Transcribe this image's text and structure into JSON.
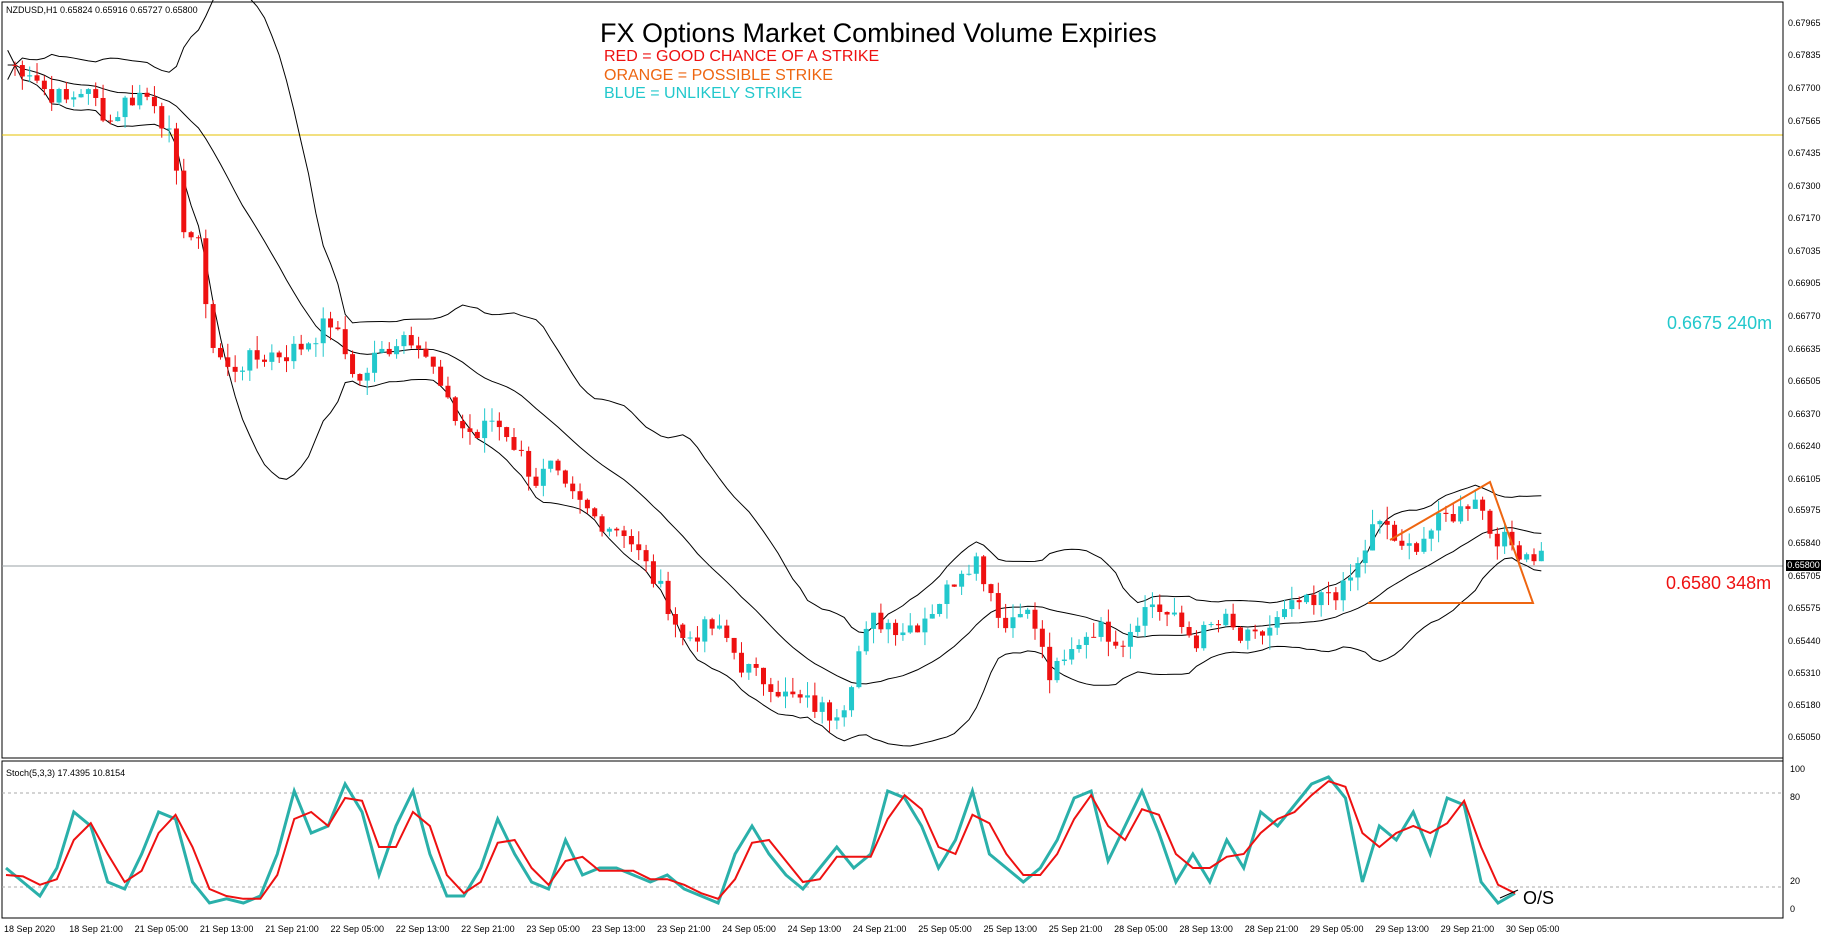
{
  "header": {
    "symbol_info": "NZDUSD,H1  0.65824 0.65916 0.65727 0.65800",
    "title": "FX Options Market Combined Volume Expiries",
    "legend": [
      {
        "text": "RED = GOOD CHANCE OF A STRIKE",
        "color": "#ee1111"
      },
      {
        "text": "ORANGE = POSSIBLE STRIKE",
        "color": "#ee6611"
      },
      {
        "text": "BLUE = UNLIKELY STRIKE",
        "color": "#22c8cc"
      }
    ]
  },
  "annotations": {
    "level_blue": "0.6675 240m",
    "level_red": "0.6580 348m",
    "current_price": "0.65800",
    "stoch_label": "Stoch(5,3,3) 17.4395 10.8154",
    "os_label": "O/S"
  },
  "colors": {
    "bull": "#22c8cc",
    "bear": "#ee1111",
    "band": "#000000",
    "hline_gold": "#e6c200",
    "hline_current": "#9aa0a6",
    "triangle": "#ee6611",
    "stoch_main": "#2ab0aa",
    "stoch_signal": "#ee1111"
  },
  "chart_data": [
    {
      "type": "candlestick",
      "name": "NZDUSD H1",
      "ylim": [
        0.65,
        0.6804
      ],
      "y_ticks": [
        "0.67965",
        "0.67835",
        "0.67700",
        "0.67565",
        "0.67435",
        "0.67300",
        "0.67170",
        "0.67035",
        "0.66905",
        "0.66770",
        "0.66635",
        "0.66505",
        "0.66370",
        "0.66240",
        "0.66105",
        "0.65975",
        "0.65840",
        "0.65705",
        "0.65575",
        "0.65440",
        "0.65310",
        "0.65180",
        "0.65050"
      ],
      "x_ticks": [
        "18 Sep 2020",
        "18 Sep 21:00",
        "21 Sep 05:00",
        "21 Sep 13:00",
        "21 Sep 21:00",
        "22 Sep 05:00",
        "22 Sep 13:00",
        "22 Sep 21:00",
        "23 Sep 05:00",
        "23 Sep 13:00",
        "23 Sep 21:00",
        "24 Sep 05:00",
        "24 Sep 13:00",
        "24 Sep 21:00",
        "25 Sep 05:00",
        "25 Sep 13:00",
        "25 Sep 21:00",
        "28 Sep 05:00",
        "28 Sep 13:00",
        "28 Sep 21:00",
        "29 Sep 05:00",
        "29 Sep 13:00",
        "29 Sep 21:00",
        "30 Sep 05:00"
      ],
      "close_path": [
        [
          0,
          0.678
        ],
        [
          3,
          0.6778
        ],
        [
          5,
          0.677
        ],
        [
          8,
          0.6765
        ],
        [
          10,
          0.677
        ],
        [
          12,
          0.6765
        ],
        [
          14,
          0.6757
        ],
        [
          16,
          0.6765
        ],
        [
          18,
          0.6768
        ],
        [
          20,
          0.6766
        ],
        [
          22,
          0.675
        ],
        [
          24,
          0.6715
        ],
        [
          26,
          0.6705
        ],
        [
          28,
          0.6665
        ],
        [
          30,
          0.6655
        ],
        [
          32,
          0.6658
        ],
        [
          34,
          0.666
        ],
        [
          36,
          0.6662
        ],
        [
          38,
          0.6662
        ],
        [
          40,
          0.6665
        ],
        [
          42,
          0.667
        ],
        [
          44,
          0.6675
        ],
        [
          46,
          0.6662
        ],
        [
          48,
          0.665
        ],
        [
          50,
          0.666
        ],
        [
          52,
          0.6665
        ],
        [
          54,
          0.667
        ],
        [
          56,
          0.6668
        ],
        [
          58,
          0.6655
        ],
        [
          60,
          0.664
        ],
        [
          62,
          0.6632
        ],
        [
          64,
          0.6628
        ],
        [
          66,
          0.6635
        ],
        [
          68,
          0.663
        ],
        [
          70,
          0.662
        ],
        [
          72,
          0.661
        ],
        [
          74,
          0.6615
        ],
        [
          76,
          0.6605
        ],
        [
          78,
          0.66
        ],
        [
          80,
          0.6595
        ],
        [
          82,
          0.6592
        ],
        [
          84,
          0.659
        ],
        [
          86,
          0.658
        ],
        [
          88,
          0.657
        ],
        [
          90,
          0.656
        ],
        [
          92,
          0.6545
        ],
        [
          94,
          0.6548
        ],
        [
          96,
          0.655
        ],
        [
          98,
          0.6545
        ],
        [
          100,
          0.6535
        ],
        [
          102,
          0.653
        ],
        [
          104,
          0.6528
        ],
        [
          106,
          0.6522
        ],
        [
          108,
          0.652
        ],
        [
          110,
          0.6518
        ],
        [
          112,
          0.6515
        ],
        [
          114,
          0.652
        ],
        [
          116,
          0.654
        ],
        [
          118,
          0.6553
        ],
        [
          120,
          0.6552
        ],
        [
          122,
          0.655
        ],
        [
          124,
          0.6552
        ],
        [
          126,
          0.6558
        ],
        [
          128,
          0.6565
        ],
        [
          130,
          0.6575
        ],
        [
          132,
          0.6578
        ],
        [
          134,
          0.6565
        ],
        [
          136,
          0.655
        ],
        [
          138,
          0.656
        ],
        [
          140,
          0.655
        ],
        [
          142,
          0.653
        ],
        [
          144,
          0.6535
        ],
        [
          146,
          0.6545
        ],
        [
          148,
          0.655
        ],
        [
          150,
          0.6548
        ],
        [
          152,
          0.6545
        ],
        [
          154,
          0.6555
        ],
        [
          156,
          0.656
        ],
        [
          158,
          0.6555
        ],
        [
          160,
          0.655
        ],
        [
          162,
          0.6545
        ],
        [
          164,
          0.655
        ],
        [
          166,
          0.6552
        ],
        [
          168,
          0.6545
        ],
        [
          170,
          0.6545
        ],
        [
          172,
          0.655
        ],
        [
          174,
          0.6555
        ],
        [
          176,
          0.656
        ],
        [
          178,
          0.6558
        ],
        [
          180,
          0.6565
        ],
        [
          182,
          0.6565
        ],
        [
          184,
          0.6575
        ],
        [
          186,
          0.659
        ],
        [
          188,
          0.6592
        ],
        [
          190,
          0.658
        ],
        [
          192,
          0.6585
        ],
        [
          194,
          0.659
        ],
        [
          196,
          0.6595
        ],
        [
          198,
          0.6598
        ],
        [
          200,
          0.6605
        ],
        [
          202,
          0.659
        ],
        [
          204,
          0.6585
        ],
        [
          206,
          0.6582
        ],
        [
          208,
          0.658
        ]
      ]
    },
    {
      "type": "line",
      "name": "Stoch(5,3,3)",
      "ylim": [
        0,
        100
      ],
      "y_ticks": [
        "100",
        "80",
        "20",
        "0"
      ],
      "series": [
        {
          "name": "main",
          "values": [
            30,
            20,
            10,
            30,
            70,
            60,
            20,
            15,
            40,
            70,
            65,
            20,
            5,
            8,
            5,
            10,
            40,
            85,
            55,
            60,
            90,
            70,
            25,
            60,
            85,
            40,
            10,
            10,
            30,
            65,
            40,
            20,
            15,
            50,
            25,
            30,
            30,
            25,
            20,
            25,
            15,
            10,
            5,
            40,
            60,
            40,
            25,
            15,
            30,
            45,
            30,
            40,
            85,
            80,
            60,
            30,
            50,
            85,
            40,
            30,
            20,
            30,
            50,
            80,
            85,
            35,
            60,
            85,
            55,
            20,
            40,
            20,
            50,
            30,
            70,
            60,
            75,
            90,
            95,
            80,
            20,
            60,
            50,
            70,
            40,
            80,
            75,
            20,
            5,
            12
          ]
        },
        {
          "name": "signal",
          "values": [
            25,
            24,
            18,
            22,
            50,
            62,
            40,
            20,
            28,
            55,
            68,
            45,
            15,
            10,
            8,
            8,
            25,
            65,
            70,
            60,
            80,
            78,
            45,
            45,
            70,
            60,
            25,
            12,
            20,
            48,
            50,
            30,
            18,
            35,
            38,
            28,
            28,
            28,
            22,
            22,
            18,
            12,
            8,
            22,
            48,
            50,
            35,
            20,
            22,
            38,
            38,
            38,
            65,
            82,
            72,
            45,
            40,
            68,
            62,
            40,
            25,
            25,
            40,
            65,
            82,
            60,
            50,
            72,
            68,
            40,
            30,
            30,
            38,
            40,
            55,
            65,
            70,
            82,
            92,
            88,
            55,
            45,
            55,
            60,
            55,
            62,
            78,
            45,
            18,
            12
          ]
        }
      ]
    }
  ]
}
